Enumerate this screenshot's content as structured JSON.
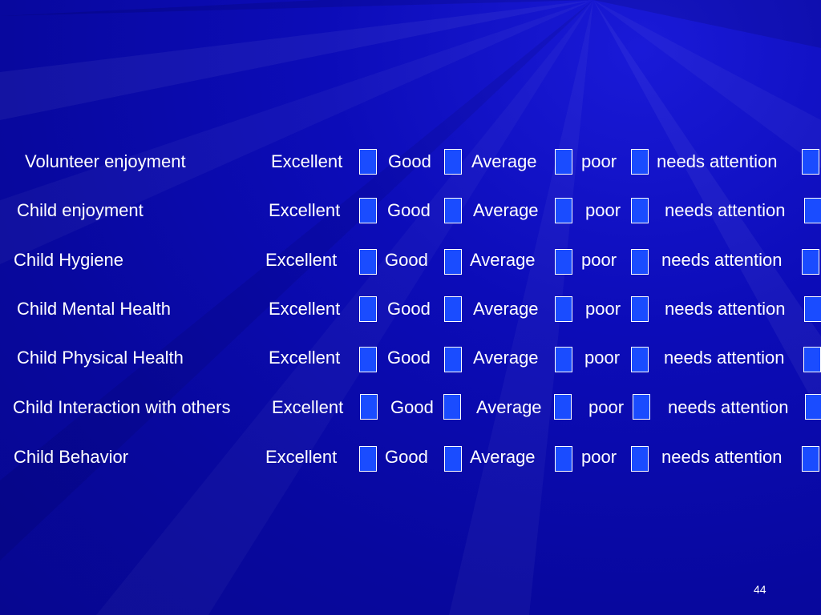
{
  "slide": {
    "page_number": "44",
    "rows": [
      {
        "label": "Volunteer enjoyment",
        "options": [
          "Excellent",
          "Good",
          "Average",
          "poor",
          "needs attention"
        ]
      },
      {
        "label": "Child enjoyment",
        "options": [
          "Excellent",
          "Good",
          "Average",
          "poor",
          "needs attention"
        ]
      },
      {
        "label": "Child Hygiene",
        "options": [
          "Excellent",
          "Good",
          "Average",
          "poor",
          "needs attention"
        ]
      },
      {
        "label": "Child Mental Health",
        "options": [
          "Excellent",
          "Good",
          "Average",
          "poor",
          "needs attention"
        ]
      },
      {
        "label": "Child Physical Health",
        "options": [
          "Excellent",
          "Good",
          "Average",
          "poor",
          "needs attention"
        ]
      },
      {
        "label": "Child Interaction with others",
        "options": [
          "Excellent",
          "Good",
          "Average",
          "poor",
          "needs attention"
        ]
      },
      {
        "label": "Child Behavior",
        "options": [
          "Excellent",
          "Good",
          "Average",
          "poor",
          "needs attention"
        ]
      }
    ]
  },
  "colors": {
    "background": "#0c0cb8",
    "checkbox_fill": "#1a4cff",
    "text": "#ffffff"
  }
}
